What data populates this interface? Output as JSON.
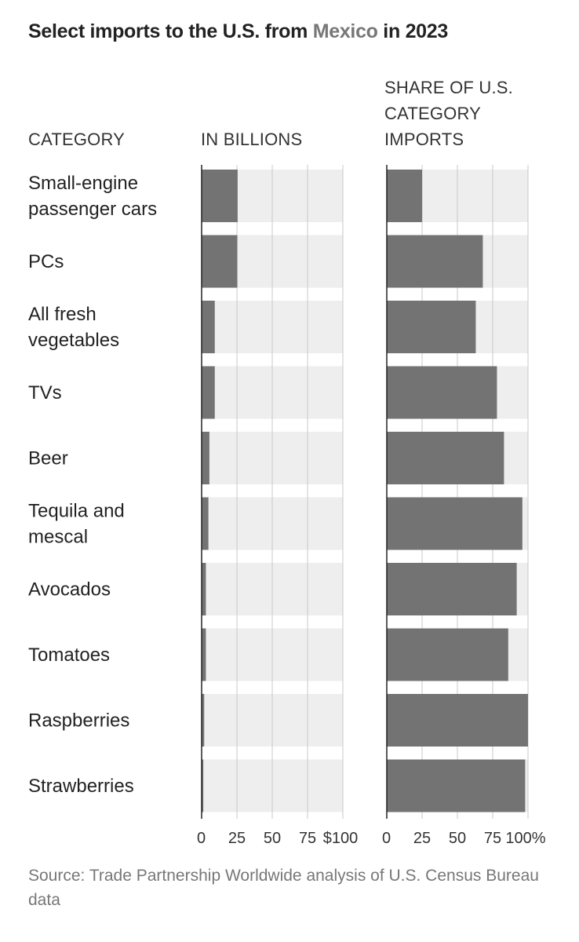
{
  "title": {
    "prefix": "Select imports to the U.S. from ",
    "highlight": "Mexico",
    "suffix": " in 2023"
  },
  "headers": {
    "category": "CATEGORY",
    "billions": "IN BILLIONS",
    "share_lines": [
      "SHARE OF U.S.",
      "CATEGORY",
      "IMPORTS"
    ]
  },
  "source": "Source: Trade Partnership Worldwide analysis of U.S. Census Bureau data",
  "colors": {
    "bar": "#737373",
    "track": "#eeeeef",
    "grid": "#c8c8c8",
    "axis": "#222222",
    "highlight": "#777777"
  },
  "chart_data": [
    {
      "type": "bar",
      "orientation": "horizontal",
      "xlabel": "IN BILLIONS",
      "xlim": [
        0,
        100
      ],
      "ticks": [
        0,
        25,
        50,
        75,
        100
      ],
      "tick_labels": [
        "0",
        "25",
        "50",
        "75",
        "$100"
      ],
      "grid": true,
      "categories": [
        [
          "Small-engine",
          "passenger cars"
        ],
        [
          "PCs"
        ],
        [
          "All fresh",
          "vegetables"
        ],
        [
          "TVs"
        ],
        [
          "Beer"
        ],
        [
          "Tequila and",
          "mescal"
        ],
        [
          "Avocados"
        ],
        [
          "Tomatoes"
        ],
        [
          "Raspberries"
        ],
        [
          "Strawberries"
        ]
      ],
      "values": [
        25.5,
        25.3,
        9.3,
        9.3,
        5.5,
        4.8,
        3.0,
        3.0,
        1.8,
        1.2
      ]
    },
    {
      "type": "bar",
      "orientation": "horizontal",
      "xlabel": "SHARE OF U.S. CATEGORY IMPORTS",
      "xlim": [
        0,
        100
      ],
      "ticks": [
        0,
        25,
        50,
        75,
        100
      ],
      "tick_labels": [
        "0",
        "25",
        "50",
        "75",
        "100%"
      ],
      "grid": true,
      "values": [
        25,
        68,
        63,
        78,
        83,
        96,
        92,
        86,
        100,
        98
      ]
    }
  ]
}
